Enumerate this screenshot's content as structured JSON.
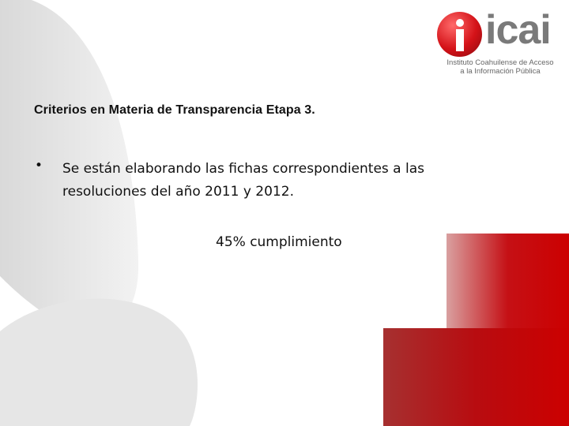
{
  "logo": {
    "word": "icai",
    "subtitle_line1": "Instituto Coahuilense de Acceso",
    "subtitle_line2": "a la Información Pública",
    "brand_color": "#d41218"
  },
  "title": "Criterios en Materia de Transparencia Etapa 3.",
  "bullets": [
    {
      "symbol": "•",
      "text": "Se están elaborando las fichas correspondientes a las resoluciones del año 2011 y 2012."
    }
  ],
  "progress": {
    "label": "45% cumplimiento",
    "value_percent": 45
  }
}
